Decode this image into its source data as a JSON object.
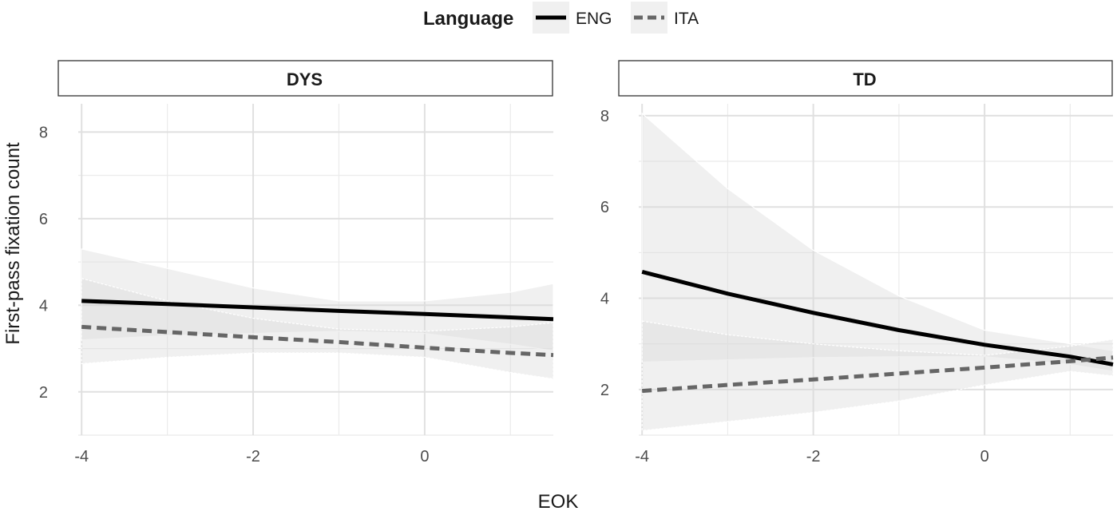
{
  "chart_data": {
    "type": "line",
    "legend": {
      "title": "Language",
      "position": "top",
      "entries": [
        {
          "label": "ENG",
          "line_style": "solid",
          "color": "#000000"
        },
        {
          "label": "ITA",
          "line_style": "dashed",
          "color": "#666666"
        }
      ]
    },
    "xlabel": "EOK",
    "ylabel": "First-pass fixation count",
    "xlim": [
      -4.3,
      1.5
    ],
    "grid": true,
    "panels": [
      {
        "strip": "DYS",
        "ylim": [
          1.0,
          8.8
        ],
        "x_ticks": [
          -4,
          -2,
          0
        ],
        "y_ticks": [
          2,
          4,
          6,
          8
        ],
        "series": [
          {
            "name": "ENG",
            "x": [
              -4,
              -3,
              -2,
              -1,
              0,
              1,
              1.5
            ],
            "y": [
              4.1,
              4.03,
              3.95,
              3.87,
              3.8,
              3.72,
              3.68
            ],
            "lower": [
              3.2,
              3.3,
              3.35,
              3.4,
              3.35,
              3.1,
              2.95
            ],
            "upper": [
              5.3,
              4.85,
              4.4,
              4.1,
              4.1,
              4.3,
              4.5
            ]
          },
          {
            "name": "ITA",
            "x": [
              -4,
              -3,
              -2,
              -1,
              0,
              1,
              1.5
            ],
            "y": [
              3.5,
              3.38,
              3.26,
              3.15,
              3.02,
              2.9,
              2.85
            ],
            "lower": [
              2.65,
              2.8,
              2.9,
              2.9,
              2.8,
              2.45,
              2.3
            ],
            "upper": [
              4.62,
              4.1,
              3.7,
              3.45,
              3.4,
              3.5,
              3.6
            ]
          }
        ]
      },
      {
        "strip": "TD",
        "ylim": [
          1.0,
          8.4
        ],
        "x_ticks": [
          -4,
          -2,
          0
        ],
        "y_ticks": [
          2,
          4,
          6,
          8
        ],
        "series": [
          {
            "name": "ENG",
            "x": [
              -4,
              -3,
              -2,
              -1,
              0,
              1,
              1.5
            ],
            "y": [
              4.58,
              4.1,
              3.68,
              3.3,
              2.98,
              2.72,
              2.55
            ],
            "lower": [
              2.6,
              2.65,
              2.7,
              2.72,
              2.72,
              2.55,
              2.4
            ],
            "upper": [
              8.05,
              6.4,
              5.05,
              4.05,
              3.3,
              3.0,
              2.85
            ]
          },
          {
            "name": "ITA",
            "x": [
              -4,
              -3,
              -2,
              -1,
              0,
              1,
              1.5
            ],
            "y": [
              1.97,
              2.1,
              2.22,
              2.35,
              2.48,
              2.62,
              2.7
            ],
            "lower": [
              1.1,
              1.3,
              1.5,
              1.75,
              2.1,
              2.4,
              2.3
            ],
            "upper": [
              3.5,
              3.2,
              3.0,
              2.85,
              2.75,
              2.95,
              3.1
            ]
          }
        ]
      }
    ]
  }
}
